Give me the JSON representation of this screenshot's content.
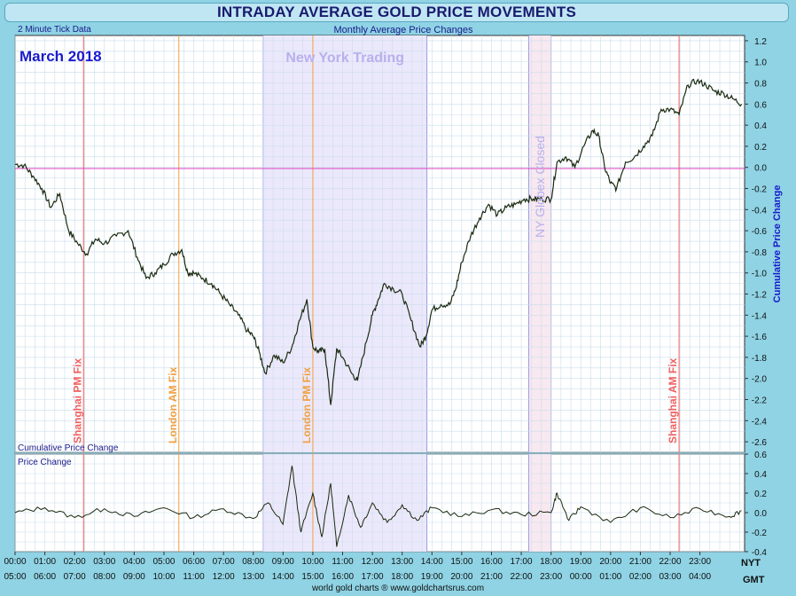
{
  "title": "INTRADAY AVERAGE GOLD PRICE MOVEMENTS",
  "subtitle": "Monthly Average Price Changes",
  "tick_note": "2 Minute Tick Data",
  "period_label": "March 2018",
  "footer": "world gold charts ® www.goldchartsrus.com",
  "upper_panel_label": "Cumulative Price Change",
  "lower_panel_label": "Price Change",
  "right_axis_title": "Cumulative Price Change",
  "nyt_label": "NYT",
  "gmt_label": "GMT",
  "colors": {
    "background": "#ffffff",
    "grid": "#c9ddec",
    "line": "#1a2a10",
    "zero_line": "#e040c0",
    "ny_band": "#ece8fb",
    "globex_band": "#f8e8ef",
    "shanghai": "#f06060",
    "london": "#f0a040",
    "axis_text": "#1a1a8a"
  },
  "chart_data": [
    {
      "type": "line",
      "panel": "upper",
      "title": "",
      "xlabel": "",
      "ylabel": "Cumulative Price Change",
      "xlim": [
        0,
        24.5
      ],
      "ylim": [
        -2.7,
        1.25
      ],
      "y_ticks": [
        1.2,
        1.0,
        0.8,
        0.6,
        0.4,
        0.2,
        0.0,
        -0.2,
        -0.4,
        -0.6,
        -0.8,
        -1.0,
        -1.2,
        -1.4,
        -1.6,
        -1.8,
        -2.0,
        -2.2,
        -2.4,
        -2.6
      ],
      "x_ticks_gmt": [
        "05:00",
        "06:00",
        "07:00",
        "08:00",
        "09:00",
        "10:00",
        "11:00",
        "12:00",
        "13:00",
        "14:00",
        "15:00",
        "16:00",
        "17:00",
        "18:00",
        "19:00",
        "20:00",
        "21:00",
        "22:00",
        "23:00",
        "00:00",
        "01:00",
        "02:00",
        "03:00",
        "04:00"
      ],
      "x_ticks_nyt": [
        "00:00",
        "01:00",
        "02:00",
        "03:00",
        "04:00",
        "05:00",
        "06:00",
        "07:00",
        "08:00",
        "09:00",
        "10:00",
        "11:00",
        "12:00",
        "13:00",
        "14:00",
        "15:00",
        "16:00",
        "17:00",
        "18:00",
        "19:00",
        "20:00",
        "21:00",
        "22:00",
        "23:00"
      ],
      "grid": true,
      "annotations": [
        {
          "label": "Shanghai PM Fix",
          "x": 2.3,
          "kind": "shanghai"
        },
        {
          "label": "London AM Fix",
          "x": 5.5,
          "kind": "london"
        },
        {
          "label": "London PM Fix",
          "x": 10.0,
          "kind": "london"
        },
        {
          "label": "Shanghai AM Fix",
          "x": 22.3,
          "kind": "shanghai"
        },
        {
          "label": "New York Trading",
          "x_start": 8.33,
          "x_end": 13.83,
          "kind": "band"
        },
        {
          "label": "NY Globex Closed",
          "x_start": 17.25,
          "x_end": 18.0,
          "kind": "band"
        }
      ],
      "series": [
        {
          "values": [
            [
              0.0,
              0.03
            ],
            [
              0.3,
              0.02
            ],
            [
              0.6,
              -0.08
            ],
            [
              0.9,
              -0.2
            ],
            [
              1.2,
              -0.38
            ],
            [
              1.5,
              -0.25
            ],
            [
              1.8,
              -0.6
            ],
            [
              2.1,
              -0.72
            ],
            [
              2.4,
              -0.82
            ],
            [
              2.7,
              -0.68
            ],
            [
              3.0,
              -0.72
            ],
            [
              3.4,
              -0.65
            ],
            [
              3.8,
              -0.6
            ],
            [
              4.1,
              -0.85
            ],
            [
              4.4,
              -1.05
            ],
            [
              4.7,
              -1.0
            ],
            [
              5.0,
              -0.92
            ],
            [
              5.3,
              -0.82
            ],
            [
              5.6,
              -0.78
            ],
            [
              5.8,
              -1.0
            ],
            [
              6.0,
              -1.0
            ],
            [
              6.3,
              -1.05
            ],
            [
              6.6,
              -1.1
            ],
            [
              6.9,
              -1.2
            ],
            [
              7.2,
              -1.3
            ],
            [
              7.5,
              -1.4
            ],
            [
              7.8,
              -1.55
            ],
            [
              8.0,
              -1.6
            ],
            [
              8.2,
              -1.75
            ],
            [
              8.4,
              -1.95
            ],
            [
              8.7,
              -1.78
            ],
            [
              9.0,
              -1.85
            ],
            [
              9.3,
              -1.7
            ],
            [
              9.5,
              -1.5
            ],
            [
              9.8,
              -1.25
            ],
            [
              10.0,
              -1.7
            ],
            [
              10.2,
              -1.75
            ],
            [
              10.4,
              -1.72
            ],
            [
              10.6,
              -2.25
            ],
            [
              10.8,
              -1.72
            ],
            [
              11.0,
              -1.8
            ],
            [
              11.3,
              -1.95
            ],
            [
              11.5,
              -2.02
            ],
            [
              11.8,
              -1.65
            ],
            [
              12.0,
              -1.4
            ],
            [
              12.2,
              -1.25
            ],
            [
              12.4,
              -1.1
            ],
            [
              12.7,
              -1.15
            ],
            [
              13.0,
              -1.2
            ],
            [
              13.3,
              -1.45
            ],
            [
              13.6,
              -1.7
            ],
            [
              13.8,
              -1.6
            ],
            [
              14.0,
              -1.35
            ],
            [
              14.3,
              -1.3
            ],
            [
              14.6,
              -1.3
            ],
            [
              14.8,
              -1.15
            ],
            [
              15.0,
              -0.9
            ],
            [
              15.3,
              -0.65
            ],
            [
              15.6,
              -0.48
            ],
            [
              15.9,
              -0.35
            ],
            [
              16.2,
              -0.45
            ],
            [
              16.5,
              -0.38
            ],
            [
              16.8,
              -0.35
            ],
            [
              17.1,
              -0.3
            ],
            [
              17.4,
              -0.3
            ],
            [
              17.7,
              -0.3
            ],
            [
              18.0,
              -0.3
            ],
            [
              18.2,
              0.05
            ],
            [
              18.5,
              0.1
            ],
            [
              18.8,
              0.0
            ],
            [
              19.1,
              0.2
            ],
            [
              19.4,
              0.35
            ],
            [
              19.6,
              0.3
            ],
            [
              19.8,
              0.0
            ],
            [
              20.0,
              -0.15
            ],
            [
              20.2,
              -0.2
            ],
            [
              20.5,
              0.05
            ],
            [
              20.8,
              0.1
            ],
            [
              21.1,
              0.2
            ],
            [
              21.4,
              0.3
            ],
            [
              21.7,
              0.55
            ],
            [
              22.0,
              0.55
            ],
            [
              22.3,
              0.5
            ],
            [
              22.6,
              0.78
            ],
            [
              22.9,
              0.82
            ],
            [
              23.2,
              0.78
            ],
            [
              23.5,
              0.72
            ],
            [
              23.8,
              0.7
            ],
            [
              24.1,
              0.65
            ],
            [
              24.4,
              0.6
            ]
          ]
        }
      ]
    },
    {
      "type": "line",
      "panel": "lower",
      "title": "",
      "xlabel": "",
      "ylabel": "Price Change",
      "xlim": [
        0,
        24.5
      ],
      "ylim": [
        -0.4,
        0.6
      ],
      "y_ticks": [
        0.6,
        0.4,
        0.2,
        0.0,
        -0.2,
        -0.4
      ],
      "grid": true,
      "series": [
        {
          "values": [
            [
              0,
              0.0
            ],
            [
              1,
              0.05
            ],
            [
              2,
              -0.05
            ],
            [
              3,
              0.04
            ],
            [
              4,
              -0.04
            ],
            [
              5,
              0.05
            ],
            [
              6,
              -0.05
            ],
            [
              7,
              0.04
            ],
            [
              8,
              -0.06
            ],
            [
              8.5,
              0.1
            ],
            [
              9.0,
              -0.12
            ],
            [
              9.3,
              0.48
            ],
            [
              9.6,
              -0.2
            ],
            [
              10.0,
              0.2
            ],
            [
              10.3,
              -0.25
            ],
            [
              10.6,
              0.3
            ],
            [
              10.8,
              -0.35
            ],
            [
              11.2,
              0.18
            ],
            [
              11.6,
              -0.15
            ],
            [
              12.0,
              0.1
            ],
            [
              12.5,
              -0.1
            ],
            [
              13.0,
              0.08
            ],
            [
              13.5,
              -0.08
            ],
            [
              14,
              0.05
            ],
            [
              15,
              -0.04
            ],
            [
              16,
              0.03
            ],
            [
              17,
              -0.02
            ],
            [
              18,
              0.0
            ],
            [
              18.2,
              0.2
            ],
            [
              18.6,
              -0.08
            ],
            [
              19,
              0.06
            ],
            [
              20,
              -0.1
            ],
            [
              21,
              0.05
            ],
            [
              22,
              -0.05
            ],
            [
              23,
              0.04
            ],
            [
              24,
              -0.04
            ],
            [
              24.4,
              0.02
            ]
          ]
        }
      ]
    }
  ]
}
